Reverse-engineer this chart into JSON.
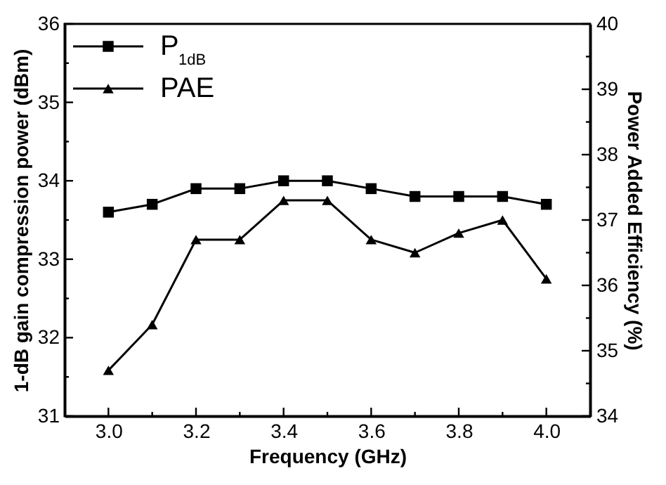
{
  "chart_data": {
    "type": "line",
    "xlabel": "Frequency    (GHz)",
    "ylabel": "1-dB gain compression power  (dBm)",
    "y2label": "Power Added Efficiency   (%)",
    "x": [
      3.0,
      3.1,
      3.2,
      3.3,
      3.4,
      3.5,
      3.6,
      3.7,
      3.8,
      3.9,
      4.0
    ],
    "series": [
      {
        "name": "P$_{1dB}$",
        "color": "#000000",
        "marker": "square",
        "values": [
          33.6,
          33.7,
          33.9,
          33.9,
          34.0,
          34.0,
          33.9,
          33.8,
          33.8,
          33.8,
          33.7
        ]
      },
      {
        "name": "PAE",
        "color": "#000000",
        "marker": "triangle",
        "axis": "y2",
        "values": [
          34.7,
          35.4,
          36.7,
          36.7,
          37.3,
          37.3,
          36.7,
          36.5,
          36.8,
          37.0,
          36.1
        ]
      }
    ],
    "xlim": [
      2.9,
      4.1
    ],
    "xticks": [
      {
        "value": 3.0,
        "label": "3.0"
      },
      {
        "value": 3.1,
        "label": null
      },
      {
        "value": 3.2,
        "label": "3.2"
      },
      {
        "value": 3.3,
        "label": null
      },
      {
        "value": 3.4,
        "label": "3.4"
      },
      {
        "value": 3.5,
        "label": null
      },
      {
        "value": 3.6,
        "label": "3.6"
      },
      {
        "value": 3.7,
        "label": null
      },
      {
        "value": 3.8,
        "label": "3.8"
      },
      {
        "value": 3.9,
        "label": null
      },
      {
        "value": 4.0,
        "label": "4.0"
      }
    ],
    "ylim": [
      31,
      36
    ],
    "yticks": [
      31,
      {
        "value": 31.5,
        "label": null
      },
      32,
      {
        "value": 32.5,
        "label": null
      },
      33,
      {
        "value": 33.5,
        "label": null
      },
      34,
      {
        "value": 34.5,
        "label": null
      },
      35,
      {
        "value": 35.5,
        "label": null
      },
      36
    ],
    "y2lim": [
      34,
      40
    ],
    "y2ticks": [
      34,
      {
        "value": 34.5,
        "label": null
      },
      35,
      {
        "value": 35.5,
        "label": null
      },
      36,
      {
        "value": 36.5,
        "label": null
      },
      37,
      {
        "value": 37.5,
        "label": null
      },
      38,
      {
        "value": 38.5,
        "label": null
      },
      39,
      {
        "value": 39.5,
        "label": null
      },
      40
    ],
    "legend": "top left",
    "grid": false,
    "line_style": "solid"
  }
}
